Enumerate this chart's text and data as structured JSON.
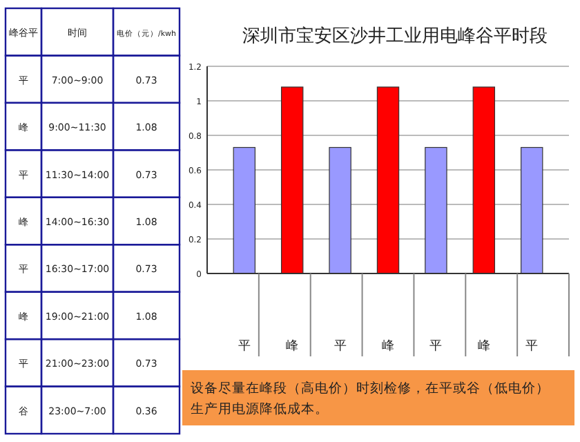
{
  "chart_data": {
    "type": "bar",
    "title": "深圳市宝安区沙井工业用电峰谷平时段",
    "categories": [
      "平",
      "峰",
      "平",
      "峰",
      "平",
      "峰",
      "平"
    ],
    "values": [
      0.73,
      1.08,
      0.73,
      1.08,
      0.73,
      1.08,
      0.73
    ],
    "colors": [
      "#9999ff",
      "#ff0000",
      "#9999ff",
      "#ff0000",
      "#9999ff",
      "#ff0000",
      "#9999ff"
    ],
    "ylim": [
      0,
      1.2
    ],
    "yticks": [
      0,
      0.2,
      0.4,
      0.6,
      0.8,
      1,
      1.2
    ],
    "grid": "y",
    "annotations": [
      "设备尽量在峰段（高电价）时刻检修，在平或谷（低电价）生产用电源降低成本。",
      "峰谷平",
      "时间",
      "电价（元）/kwh",
      "平",
      "7:00~9:00",
      "0.73",
      "峰",
      "9:00~11:30",
      "1.08",
      "平",
      "11:30~14:00",
      "0.73",
      "峰",
      "14:00~16:30",
      "1.08",
      "平",
      "16:30~17:00",
      "0.73",
      "峰",
      "19:00~21:00",
      "1.08",
      "平",
      "21:00~23:00",
      "0.73",
      "谷",
      "23:00~7:00",
      "0.36"
    ]
  }
}
